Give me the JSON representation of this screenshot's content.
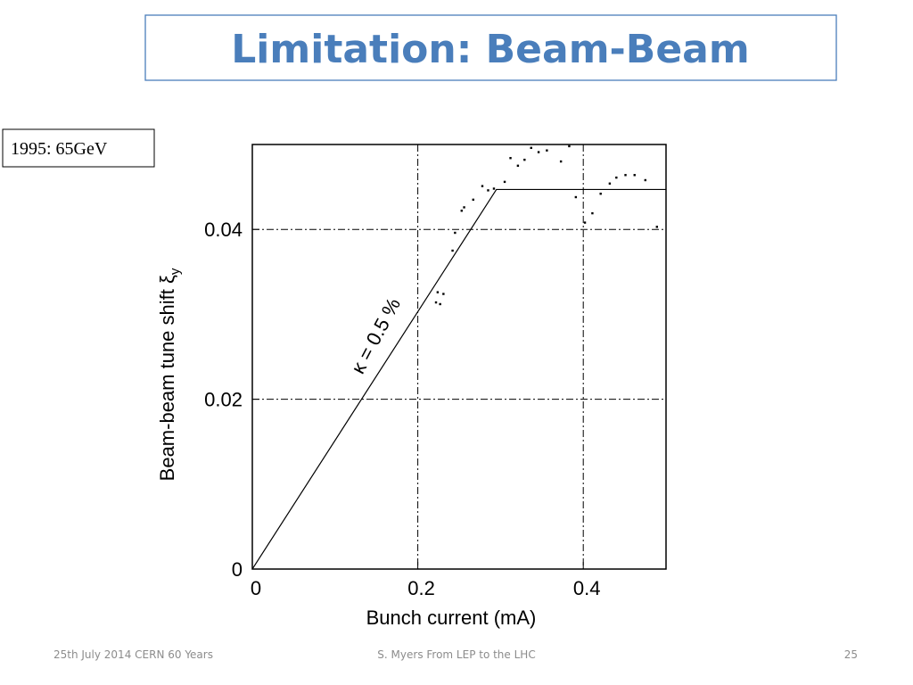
{
  "slide": {
    "title": "Limitation: Beam-Beam",
    "label": "1995: 65GeV",
    "footer_left": "25th July 2014 CERN 60 Years",
    "footer_center": "S. Myers From LEP to the LHC",
    "page_number": "25"
  },
  "chart_data": {
    "type": "scatter",
    "xlabel": "Bunch current (mA)",
    "ylabel": "Beam-beam tune shift ξ",
    "ylabel_subscript": "y",
    "annotation": "κ = 0.5 %",
    "xlim": [
      0,
      0.5
    ],
    "ylim": [
      0,
      0.05
    ],
    "xticks": [
      0,
      0.2,
      0.4
    ],
    "yticks": [
      0,
      0.02,
      0.04
    ],
    "grid": true,
    "series": [
      {
        "type": "scatter",
        "color": "#000000",
        "x": [
          0.222,
          0.227,
          0.224,
          0.231,
          0.242,
          0.245,
          0.253,
          0.256,
          0.267,
          0.278,
          0.285,
          0.292,
          0.305,
          0.312,
          0.321,
          0.329,
          0.337,
          0.346,
          0.356,
          0.373,
          0.383,
          0.391,
          0.402,
          0.411,
          0.421,
          0.432,
          0.44,
          0.451,
          0.462,
          0.475,
          0.489
        ],
        "values": [
          0.0314,
          0.0312,
          0.0326,
          0.0324,
          0.0375,
          0.0396,
          0.0422,
          0.0426,
          0.0435,
          0.0451,
          0.0446,
          0.0448,
          0.0456,
          0.0484,
          0.0475,
          0.0482,
          0.0496,
          0.0491,
          0.0493,
          0.048,
          0.0498,
          0.0438,
          0.0408,
          0.0419,
          0.0442,
          0.0454,
          0.0461,
          0.0464,
          0.0464,
          0.0458,
          0.0403
        ]
      },
      {
        "type": "line",
        "color": "#000000",
        "x": [
          0,
          0.295,
          0.5
        ],
        "values": [
          0,
          0.0447,
          0.0447
        ]
      }
    ]
  }
}
